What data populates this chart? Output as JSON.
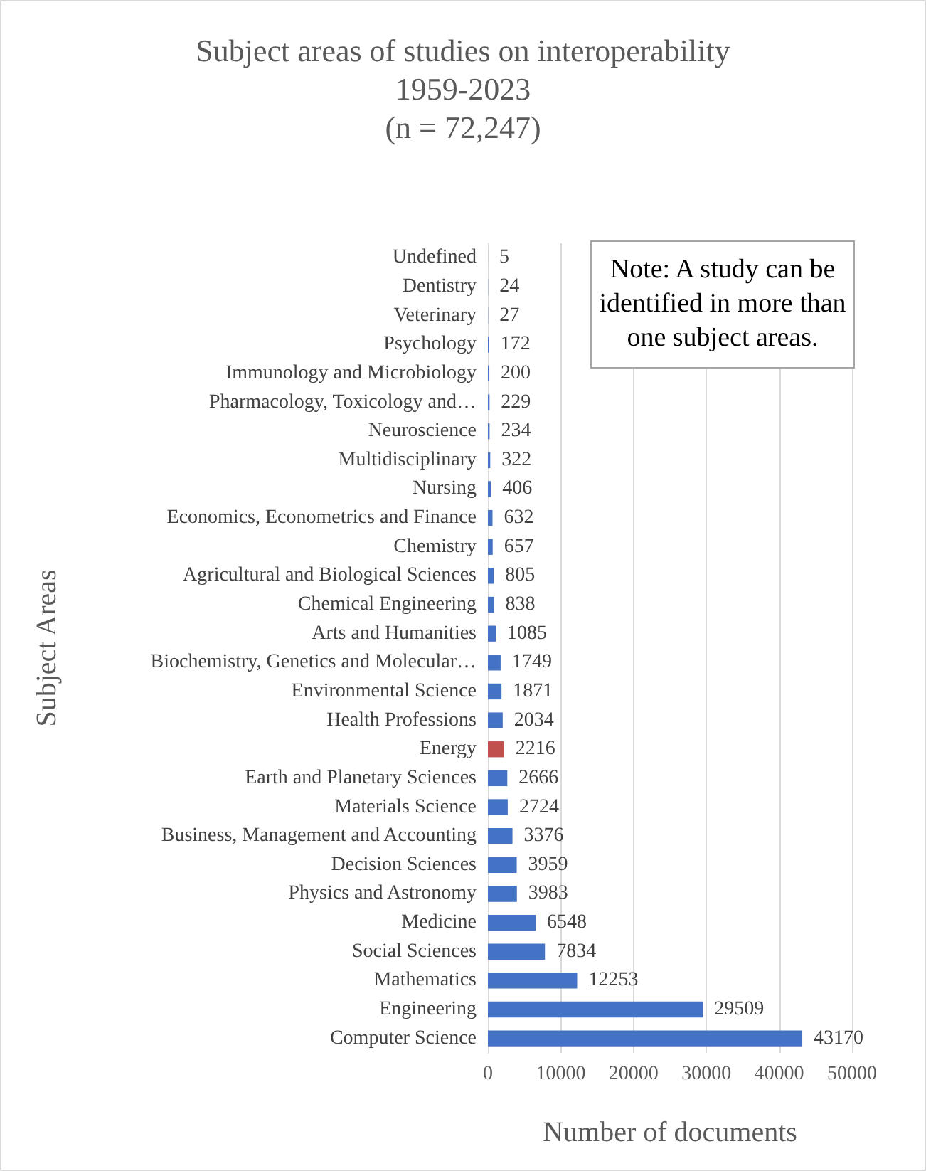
{
  "chart_data": {
    "type": "bar",
    "orientation": "horizontal",
    "title": "Subject areas of studies on interoperability\n1959-2023\n(n = 72,247)",
    "xlabel": "Number of documents",
    "ylabel": "Subject Areas",
    "annotations": [
      "Note: A study can be identified in more than one subject areas."
    ],
    "categories": [
      "Undefined",
      "Dentistry",
      "Veterinary",
      "Psychology",
      "Immunology and Microbiology",
      "Pharmacology, Toxicology and…",
      "Neuroscience",
      "Multidisciplinary",
      "Nursing",
      "Economics, Econometrics and Finance",
      "Chemistry",
      "Agricultural and Biological Sciences",
      "Chemical Engineering",
      "Arts and Humanities",
      "Biochemistry, Genetics and Molecular…",
      "Environmental Science",
      "Health Professions",
      "Energy",
      "Earth and Planetary Sciences",
      "Materials Science",
      "Business, Management and Accounting",
      "Decision Sciences",
      "Physics and Astronomy",
      "Medicine",
      "Social Sciences",
      "Mathematics",
      "Engineering",
      "Computer Science"
    ],
    "values": [
      5,
      24,
      27,
      172,
      200,
      229,
      234,
      322,
      406,
      632,
      657,
      805,
      838,
      1085,
      1749,
      1871,
      2034,
      2216,
      2666,
      2724,
      3376,
      3959,
      3983,
      6548,
      7834,
      12253,
      29509,
      43170
    ],
    "colors": [
      "#4472c4",
      "#4472c4",
      "#4472c4",
      "#4472c4",
      "#4472c4",
      "#4472c4",
      "#4472c4",
      "#4472c4",
      "#4472c4",
      "#4472c4",
      "#4472c4",
      "#4472c4",
      "#4472c4",
      "#4472c4",
      "#4472c4",
      "#4472c4",
      "#4472c4",
      "#c0504d",
      "#4472c4",
      "#4472c4",
      "#4472c4",
      "#4472c4",
      "#4472c4",
      "#4472c4",
      "#4472c4",
      "#4472c4",
      "#4472c4",
      "#4472c4"
    ],
    "xlim": [
      0,
      50000
    ],
    "xticks": [
      0,
      10000,
      20000,
      30000,
      40000,
      50000
    ],
    "grid": true,
    "data_labels": true
  }
}
